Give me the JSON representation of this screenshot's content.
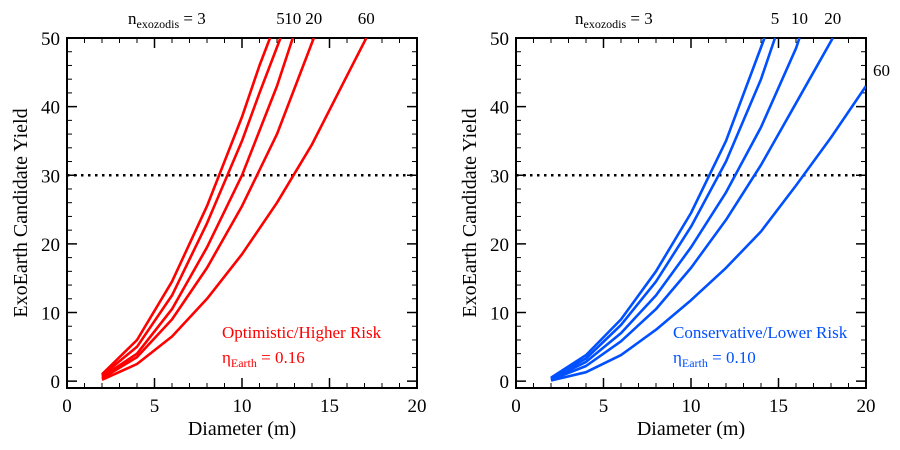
{
  "chart_data": [
    {
      "type": "line",
      "xlabel": "Diameter (m)",
      "ylabel": "ExoEarth Candidate Yield",
      "xlim": [
        0,
        20
      ],
      "ylim": [
        -1,
        50
      ],
      "xticks": [
        "0",
        "5",
        "10",
        "15",
        "20"
      ],
      "yticks": [
        "0",
        "10",
        "20",
        "30",
        "40",
        "50"
      ],
      "color": "#ff0000",
      "reference_line": {
        "y": 30,
        "style": "dotted"
      },
      "header": {
        "prefix": "n",
        "subscript": "exozodis",
        "equals": " = ",
        "labels": [
          "3",
          "5",
          "10",
          "20",
          "60"
        ]
      },
      "annotation": {
        "line1": "Optimistic/Higher Risk",
        "eta_symbol": "η",
        "eta_subscript": "Earth",
        "eta_value": " = 0.16"
      },
      "series": [
        {
          "name": "3",
          "x": [
            2,
            4,
            6,
            8,
            10,
            11,
            11.6
          ],
          "y": [
            1.0,
            6.0,
            14.5,
            25.5,
            38.5,
            46.0,
            50.0
          ]
        },
        {
          "name": "5",
          "x": [
            2,
            4,
            6,
            8,
            10,
            11,
            12.2
          ],
          "y": [
            0.8,
            5.0,
            12.5,
            23.0,
            35.0,
            42.0,
            50.0
          ]
        },
        {
          "name": "10",
          "x": [
            2,
            4,
            6,
            8,
            10,
            12,
            12.9
          ],
          "y": [
            0.6,
            4.0,
            10.5,
            19.5,
            30.0,
            43.0,
            50.0
          ]
        },
        {
          "name": "20",
          "x": [
            2,
            4,
            6,
            8,
            10,
            12,
            14.1
          ],
          "y": [
            0.4,
            3.5,
            9.0,
            16.5,
            25.5,
            36.0,
            50.0
          ]
        },
        {
          "name": "60",
          "x": [
            2,
            4,
            6,
            8,
            10,
            12,
            14,
            16,
            17.1
          ],
          "y": [
            0.2,
            2.5,
            6.5,
            12.0,
            18.5,
            26.0,
            34.5,
            44.5,
            50.0
          ]
        }
      ]
    },
    {
      "type": "line",
      "xlabel": "Diameter (m)",
      "ylabel": "ExoEarth Candidate Yield",
      "xlim": [
        0,
        20
      ],
      "ylim": [
        -1,
        50
      ],
      "xticks": [
        "0",
        "5",
        "10",
        "15",
        "20"
      ],
      "yticks": [
        "0",
        "10",
        "20",
        "30",
        "40",
        "50"
      ],
      "color": "#0050ff",
      "reference_line": {
        "y": 30,
        "style": "dotted"
      },
      "header": {
        "prefix": "n",
        "subscript": "exozodis",
        "equals": " = ",
        "labels": [
          "3",
          "5",
          "10",
          "20"
        ]
      },
      "side_label": "60",
      "annotation": {
        "line1": "Conservative/Lower Risk",
        "eta_symbol": "η",
        "eta_subscript": "Earth",
        "eta_value": " = 0.10"
      },
      "series": [
        {
          "name": "3",
          "x": [
            2,
            4,
            6,
            8,
            10,
            12,
            14.2
          ],
          "y": [
            0.5,
            3.8,
            9.0,
            16.0,
            24.5,
            35.0,
            50.0
          ]
        },
        {
          "name": "5",
          "x": [
            2,
            4,
            6,
            8,
            10,
            12,
            14,
            14.8
          ],
          "y": [
            0.4,
            3.3,
            8.2,
            14.5,
            22.5,
            32.0,
            44.0,
            50.0
          ]
        },
        {
          "name": "10",
          "x": [
            2,
            4,
            6,
            8,
            10,
            12,
            14,
            16,
            16.2
          ],
          "y": [
            0.3,
            2.8,
            7.0,
            12.5,
            19.5,
            27.5,
            37.0,
            48.5,
            50.0
          ]
        },
        {
          "name": "20",
          "x": [
            2,
            4,
            6,
            8,
            10,
            12,
            14,
            16,
            18.1
          ],
          "y": [
            0.2,
            2.2,
            5.8,
            10.5,
            16.5,
            23.5,
            31.5,
            40.5,
            50.0
          ]
        },
        {
          "name": "60",
          "x": [
            2,
            4,
            6,
            8,
            10,
            12,
            14,
            16,
            18,
            20
          ],
          "y": [
            0.1,
            1.3,
            3.8,
            7.5,
            11.8,
            16.5,
            21.8,
            28.5,
            35.5,
            43.0
          ]
        }
      ]
    }
  ]
}
